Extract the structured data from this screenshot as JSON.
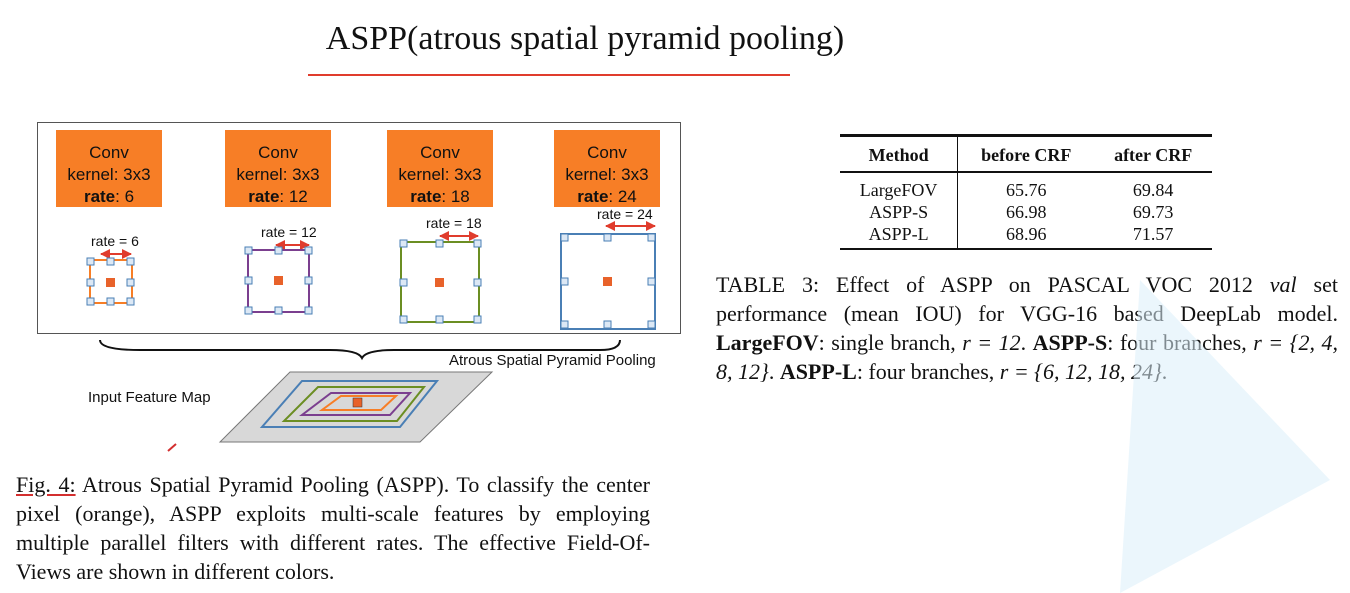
{
  "slide": {
    "title": "ASPP(atrous spatial pyramid pooling)"
  },
  "figure": {
    "conv_blocks": [
      {
        "l1": "Conv",
        "l2": "kernel: 3x3",
        "rate_word": "rate",
        "rate_value": ": 6"
      },
      {
        "l1": "Conv",
        "l2": "kernel: 3x3",
        "rate_word": "rate",
        "rate_value": ": 12"
      },
      {
        "l1": "Conv",
        "l2": "kernel: 3x3",
        "rate_word": "rate",
        "rate_value": ": 18"
      },
      {
        "l1": "Conv",
        "l2": "kernel: 3x3",
        "rate_word": "rate",
        "rate_value": ": 24"
      }
    ],
    "rate_labels": [
      "rate = 6",
      "rate = 12",
      "rate = 18",
      "rate = 24"
    ],
    "aspp_label": "Atrous Spatial Pyramid Pooling",
    "input_label": "Input Feature Map",
    "colors": {
      "orange": "#f77e26",
      "purple": "#7b3f8f",
      "green": "#6b8e23",
      "blue": "#4a7fb5",
      "red": "#e03c2d"
    }
  },
  "fig_caption": {
    "label": "Fig. 4:",
    "text": " Atrous Spatial Pyramid Pooling (ASPP). To classify the center pixel (orange), ASPP exploits multi-scale features by employing multiple parallel filters with different rates. The effective Field-Of-Views are shown in different colors."
  },
  "table": {
    "headers": [
      "Method",
      "before CRF",
      "after CRF"
    ],
    "rows": [
      [
        "LargeFOV",
        "65.76",
        "69.84"
      ],
      [
        "ASPP-S",
        "66.98",
        "69.73"
      ],
      [
        "ASPP-L",
        "68.96",
        "71.57"
      ]
    ]
  },
  "table_caption": {
    "p1": "TABLE 3: Effect of ASPP on PASCAL VOC 2012 ",
    "val": "val",
    "p2": " set performance (mean IOU) for VGG-16 based DeepLab model. ",
    "b1": "LargeFOV",
    "p3": ": single branch, ",
    "eq1": "r = 12",
    "p4": ". ",
    "b2": "ASPP-S",
    "p5": ": four branches, ",
    "eq2": "r = {2, 4, 8, 12}",
    "p6": ". ",
    "b3": "ASPP-L",
    "p7": ": four branches, ",
    "eq3": "r = {6, 12, 18, 24}",
    "p8": "."
  }
}
